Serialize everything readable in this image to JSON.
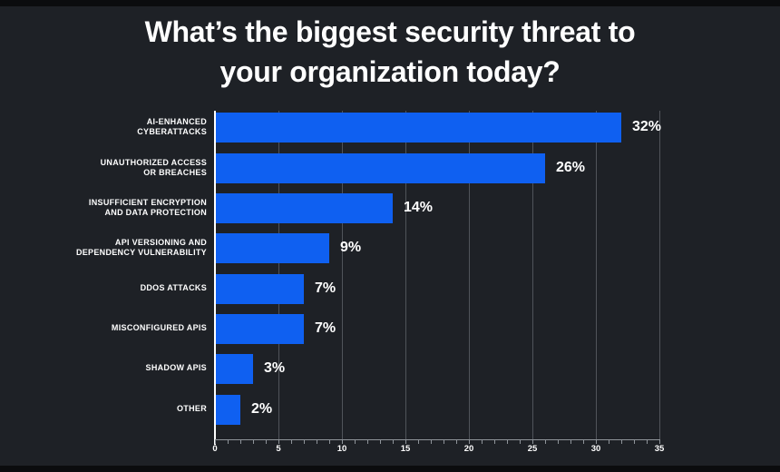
{
  "title": "What’s the biggest security threat to\nyour organization today?",
  "chart_data": {
    "type": "bar",
    "orientation": "horizontal",
    "title": "What’s the biggest security threat to your organization today?",
    "categories": [
      "AI-ENHANCED\nCYBERATTACKS",
      "UNAUTHORIZED ACCESS\nOR BREACHES",
      "INSUFFICIENT ENCRYPTION\nAND DATA PROTECTION",
      "API VERSIONING AND\nDEPENDENCY VULNERABILITY",
      "DDOS ATTACKS",
      "MISCONFIGURED APIS",
      "SHADOW APIS",
      "OTHER"
    ],
    "values": [
      32,
      26,
      14,
      9,
      7,
      7,
      3,
      2
    ],
    "value_labels": [
      "32%",
      "26%",
      "14%",
      "9%",
      "7%",
      "7%",
      "3%",
      "2%"
    ],
    "xticks": [
      0,
      5,
      10,
      15,
      20,
      25,
      30,
      35
    ],
    "xlim": [
      0,
      35
    ],
    "unit": "percent",
    "legend": false,
    "grid": "vertical-major-gridlines",
    "colors": {
      "background": "#1e2126",
      "bar": "#0f60f1",
      "gridline": "#50545a",
      "axis": "#8f949a",
      "text": "#ffffff",
      "edge_strip": "#0b0c0e"
    }
  }
}
